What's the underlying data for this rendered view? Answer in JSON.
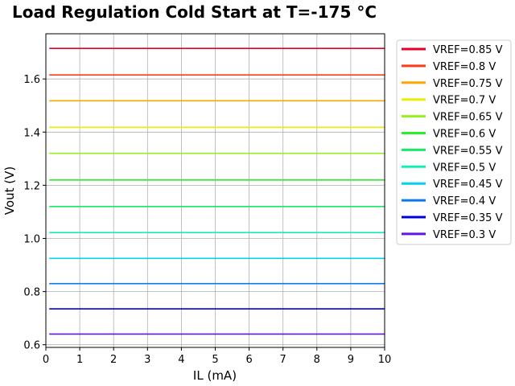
{
  "chart_data": {
    "type": "line",
    "title": "Load Regulation Cold Start at T=-175 °C",
    "xlabel": "IL (mA)",
    "ylabel": "Vout (V)",
    "xlim": [
      0,
      10
    ],
    "ylim": [
      0.59,
      1.77
    ],
    "xticks": [
      0,
      1,
      2,
      3,
      4,
      5,
      6,
      7,
      8,
      9,
      10
    ],
    "yticks": [
      0.6,
      0.8,
      1.0,
      1.2,
      1.4,
      1.6
    ],
    "ytick_labels": [
      "0.6",
      "0.8",
      "1.0",
      "1.2",
      "1.4",
      "1.6"
    ],
    "grid": true,
    "legend_position": "outside-right",
    "x": [
      0.1,
      10
    ],
    "series": [
      {
        "name": "VREF=0.85 V",
        "color": "#e8002a",
        "values": [
          1.715,
          1.715
        ]
      },
      {
        "name": "VREF=0.8 V",
        "color": "#ff3c14",
        "values": [
          1.615,
          1.615
        ]
      },
      {
        "name": "VREF=0.75 V",
        "color": "#ffa500",
        "values": [
          1.518,
          1.518
        ]
      },
      {
        "name": "VREF=0.7 V",
        "color": "#e8f000",
        "values": [
          1.418,
          1.418
        ]
      },
      {
        "name": "VREF=0.65 V",
        "color": "#96f01e",
        "values": [
          1.32,
          1.32
        ]
      },
      {
        "name": "VREF=0.6 V",
        "color": "#28f028",
        "values": [
          1.22,
          1.22
        ]
      },
      {
        "name": "VREF=0.55 V",
        "color": "#14eb64",
        "values": [
          1.12,
          1.12
        ]
      },
      {
        "name": "VREF=0.5 V",
        "color": "#14f0b4",
        "values": [
          1.022,
          1.022
        ]
      },
      {
        "name": "VREF=0.45 V",
        "color": "#00d2f0",
        "values": [
          0.925,
          0.925
        ]
      },
      {
        "name": "VREF=0.4 V",
        "color": "#0a78f0",
        "values": [
          0.83,
          0.83
        ]
      },
      {
        "name": "VREF=0.35 V",
        "color": "#0000dc",
        "values": [
          0.735,
          0.735
        ]
      },
      {
        "name": "VREF=0.3 V",
        "color": "#6414e6",
        "values": [
          0.64,
          0.64
        ]
      }
    ]
  }
}
